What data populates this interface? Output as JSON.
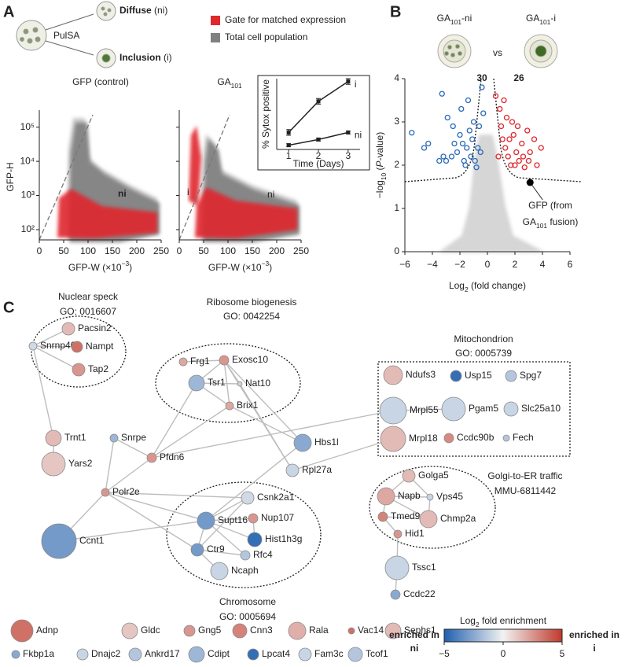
{
  "panel_a": {
    "label": "A",
    "schematic": {
      "method": "PulSA",
      "diffuse": [
        {
          "t": "Diffuse",
          "bold": true
        },
        {
          "t": " (ni)"
        }
      ],
      "inclusion": [
        {
          "t": "Inclusion",
          "bold": true
        },
        {
          "t": " (i)"
        }
      ]
    },
    "legend": [
      {
        "name": "Gate for matched expression",
        "color": "#e0282e"
      },
      {
        "name": "Total cell population",
        "color": "#808080"
      }
    ],
    "flow_plots": [
      {
        "title": [
          {
            "t": "GFP (control)"
          }
        ],
        "gate_labels": [
          "ni"
        ]
      },
      {
        "title": [
          {
            "t": "GA"
          },
          {
            "t": "101",
            "sub": true
          }
        ],
        "gate_labels": [
          "i",
          "ni"
        ]
      }
    ],
    "log_y": true,
    "xlim": [
      0,
      250
    ],
    "xticks": [
      0,
      50,
      100,
      150,
      200,
      250
    ],
    "ylim": [
      50,
      300000
    ],
    "yticks": [
      {
        "value": 100,
        "label": "10²"
      },
      {
        "value": 1000,
        "label": "10³"
      },
      {
        "value": 10000,
        "label": "10⁴"
      },
      {
        "value": 100000,
        "label": "10⁵"
      }
    ],
    "xlabel": [
      {
        "t": "GFP-W (×10"
      },
      {
        "t": "−3",
        "sup": true
      },
      {
        "t": ")"
      }
    ],
    "ylabel": "GFP-H",
    "inset": {
      "type": "line",
      "ylabel": "% Sytox positive",
      "xlabel": "Time (Days)",
      "x": [
        1,
        2,
        3
      ],
      "xlim": [
        0.6,
        3.4
      ],
      "xticks": [
        1,
        2,
        3
      ],
      "ylim": [
        0,
        25
      ],
      "series": [
        {
          "name": "i",
          "color": "#222222",
          "values": [
            6,
            17,
            24
          ],
          "errors": [
            1,
            1,
            1
          ]
        },
        {
          "name": "ni",
          "color": "#222222",
          "values": [
            1.5,
            3.5,
            6
          ],
          "errors": [
            0.5,
            0.5,
            0.5
          ]
        }
      ]
    }
  },
  "panel_b": {
    "label": "B",
    "type": "scatter",
    "title_left": [
      {
        "t": "GA"
      },
      {
        "t": "101",
        "sub": true
      },
      {
        "t": "-ni"
      }
    ],
    "vs": "vs",
    "title_right": [
      {
        "t": "GA"
      },
      {
        "t": "101",
        "sub": true
      },
      {
        "t": "-i"
      }
    ],
    "xlim": [
      -6,
      6
    ],
    "xticks": [
      {
        "value": -6,
        "label": "−6"
      },
      {
        "value": -4,
        "label": "−4"
      },
      {
        "value": -2,
        "label": "−2"
      },
      0,
      2,
      4,
      6
    ],
    "ylim": [
      0,
      4
    ],
    "yticks": [
      0,
      1,
      2,
      3,
      4
    ],
    "xlabel": [
      {
        "t": "Log"
      },
      {
        "t": "2",
        "sub": true
      },
      {
        "t": " (fold change)"
      }
    ],
    "ylabel": [
      {
        "t": "−log"
      },
      {
        "t": "10",
        "sub": true
      },
      {
        "t": " ("
      },
      {
        "t": "P",
        "italic": true
      },
      {
        "t": "-value)"
      }
    ],
    "series": [
      {
        "color": "#2b6cb8",
        "count": 30,
        "x": [
          -5.5,
          -4.6,
          -4.3,
          -3.5,
          -3.2,
          -3.0,
          -3.3,
          -2.9,
          -2.5,
          -2.4,
          -2.2,
          -2.0,
          -1.9,
          -1.7,
          -1.6,
          -1.5,
          -1.4,
          -1.3,
          -1.2,
          -1.1,
          -1.0,
          -0.9,
          -0.8,
          -0.7,
          -0.6,
          -0.5,
          -0.4,
          -0.3,
          -1.8,
          -2.6
        ],
        "values": [
          2.75,
          2.4,
          2.5,
          2.1,
          2.2,
          2.1,
          3.65,
          3.1,
          2.9,
          2.5,
          2.3,
          2.7,
          3.3,
          2.1,
          2.0,
          2.4,
          3.5,
          2.8,
          2.2,
          2.6,
          3.0,
          2.1,
          1.95,
          2.4,
          2.9,
          2.3,
          3.8,
          3.2,
          2.5,
          2.2
        ]
      },
      {
        "color": "#e0282e",
        "count": 26,
        "x": [
          0.6,
          0.9,
          1.0,
          1.1,
          1.3,
          1.4,
          1.5,
          1.7,
          1.8,
          1.9,
          2.1,
          2.2,
          2.3,
          2.5,
          2.6,
          2.9,
          3.1,
          3.4,
          3.6,
          3.9,
          0.8,
          1.2,
          1.6,
          2.0,
          2.7,
          3.0
        ],
        "values": [
          3.6,
          3.3,
          2.9,
          2.6,
          2.4,
          3.1,
          2.2,
          2.0,
          3.0,
          2.7,
          2.3,
          2.9,
          2.1,
          2.5,
          2.2,
          2.8,
          2.3,
          2.6,
          2.0,
          2.4,
          2.2,
          3.5,
          2.6,
          2.0,
          1.95,
          2.1
        ]
      }
    ],
    "highlight": {
      "x": 3.1,
      "y": 1.6,
      "label_lines": [
        [
          {
            "t": "GFP (from"
          }
        ],
        [
          {
            "t": "GA"
          },
          {
            "t": "101",
            "sub": true
          },
          {
            "t": " fusion)"
          }
        ]
      ]
    }
  },
  "panel_c": {
    "label": "C",
    "groups": [
      {
        "title": "Nuclear speck",
        "id": "GO: 0016607"
      },
      {
        "title": "Ribosome biogenesis",
        "id": "GO: 0042254"
      },
      {
        "title": "Mitochondrion",
        "id": "GO: 0005739"
      },
      {
        "title": "Chromosome",
        "id": "GO: 0005694"
      },
      {
        "title": "Golgi-to-ER traffic",
        "id": "MMU-6811442"
      }
    ],
    "nodes": [
      {
        "label": "Pacsin2",
        "fold": 1.5
      },
      {
        "label": "Snrnp40",
        "fold": -0.8
      },
      {
        "label": "Nampt",
        "fold": 3.5
      },
      {
        "label": "Tap2",
        "fold": 2.5
      },
      {
        "label": "Frg1",
        "fold": 2
      },
      {
        "label": "Exosc10",
        "fold": 2.5
      },
      {
        "label": "Tsr1",
        "fold": -2
      },
      {
        "label": "Nat10",
        "fold": -1
      },
      {
        "label": "Brix1",
        "fold": 2
      },
      {
        "label": "Ndufs3",
        "fold": 1.5
      },
      {
        "label": "Usp15",
        "fold": -4.5
      },
      {
        "label": "Spg7",
        "fold": -1.5
      },
      {
        "label": "Mrpl55",
        "fold": -1
      },
      {
        "label": "Pgam5",
        "fold": -1
      },
      {
        "label": "Slc25a10",
        "fold": -1
      },
      {
        "label": "Mrpl18",
        "fold": 1.5
      },
      {
        "label": "Ccdc90b",
        "fold": 2.8
      },
      {
        "label": "Fech",
        "fold": -1.5
      },
      {
        "label": "Trnt1",
        "fold": 1.5
      },
      {
        "label": "Yars2",
        "fold": 1.2
      },
      {
        "label": "Snrpe",
        "fold": -2
      },
      {
        "label": "Pfdn6",
        "fold": 2.5
      },
      {
        "label": "Hbs1l",
        "fold": -2.5
      },
      {
        "label": "Rpl27a",
        "fold": -1
      },
      {
        "label": "Polr2e",
        "fold": 2.5
      },
      {
        "label": "Ccnt1",
        "fold": -3
      },
      {
        "label": "Csnk2a1",
        "fold": -0.8
      },
      {
        "label": "Supt16",
        "fold": -3
      },
      {
        "label": "Nup107",
        "fold": 2.5
      },
      {
        "label": "Hist1h3g",
        "fold": -4.5
      },
      {
        "label": "Ctr9",
        "fold": -3
      },
      {
        "label": "Rfc4",
        "fold": -1.5
      },
      {
        "label": "Ncaph",
        "fold": -1
      },
      {
        "label": "Golga5",
        "fold": 1.5
      },
      {
        "label": "Napb",
        "fold": 2
      },
      {
        "label": "Vps45",
        "fold": -1
      },
      {
        "label": "Tmed9",
        "fold": 3
      },
      {
        "label": "Chmp2a",
        "fold": 1.5
      },
      {
        "label": "Hid1",
        "fold": 2.5
      },
      {
        "label": "Tssc1",
        "fold": -1
      },
      {
        "label": "Ccdc22",
        "fold": -2.5
      },
      {
        "label": "Adnp",
        "fold": 3.5
      },
      {
        "label": "Gldc",
        "fold": 1.2
      },
      {
        "label": "Gng5",
        "fold": 2.5
      },
      {
        "label": "Cnn3",
        "fold": 3
      },
      {
        "label": "Rala",
        "fold": 1.8
      },
      {
        "label": "Vac14",
        "fold": 3.5
      },
      {
        "label": "Sephs1",
        "fold": 1.5
      },
      {
        "label": "Fkbp1a",
        "fold": -2.5
      },
      {
        "label": "Dnajc2",
        "fold": -1
      },
      {
        "label": "Ankrd17",
        "fold": -1.5
      },
      {
        "label": "Cdipt",
        "fold": -2
      },
      {
        "label": "Lpcat4",
        "fold": -4.5
      },
      {
        "label": "Fam3c",
        "fold": -1
      },
      {
        "label": "Tcof1",
        "fold": -1.5
      }
    ],
    "colorbar": {
      "title": [
        {
          "t": "Log"
        },
        {
          "t": "2",
          "sub": true
        },
        {
          "t": " fold enrichment"
        }
      ],
      "lim": [
        -5,
        5
      ],
      "ticks": [
        {
          "value": -5,
          "label": "−5"
        },
        0,
        5
      ],
      "colors": [
        "#1f5fae",
        "#f2f2f2",
        "#c0392b"
      ],
      "label_low": [
        "enriched in",
        "ni"
      ],
      "label_high": [
        "enriched in",
        "i"
      ]
    }
  }
}
